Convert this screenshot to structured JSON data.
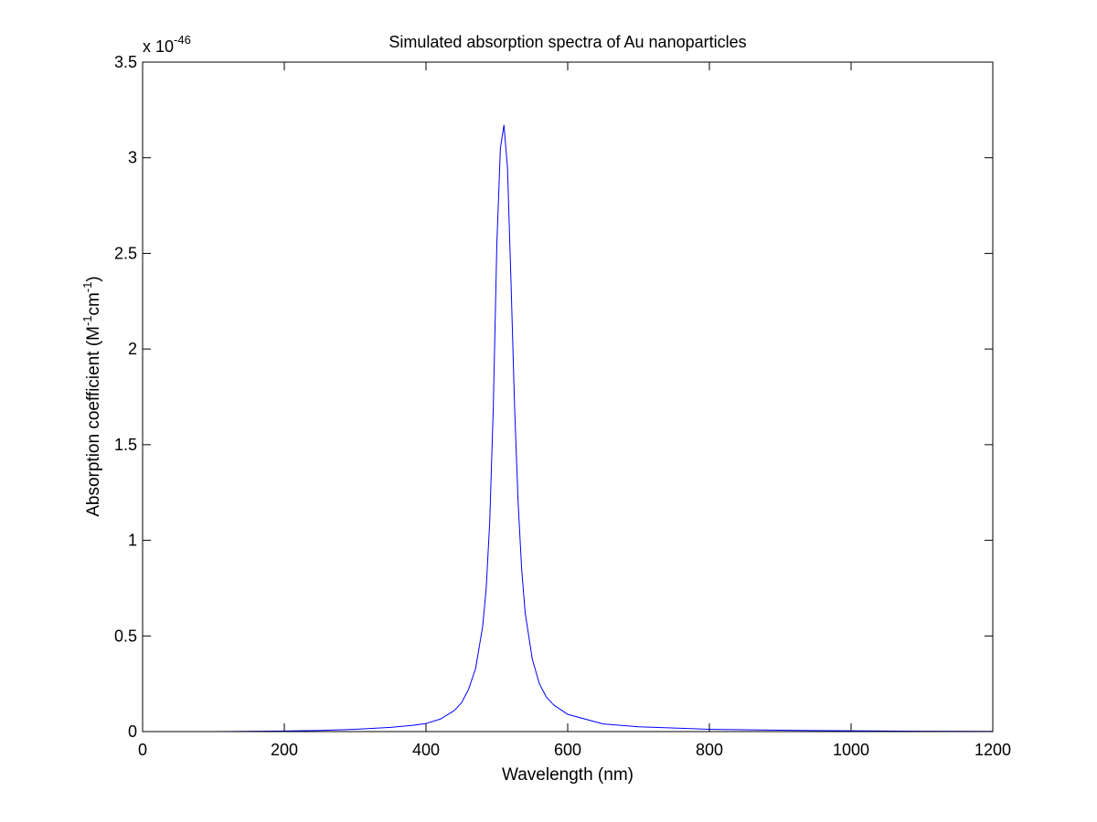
{
  "chart_data": {
    "type": "line",
    "title": "Simulated absorption spectra of Au nanoparticles",
    "xlabel": "Wavelength (nm)",
    "ylabel": {
      "base": "Absorption coefficient (M",
      "sup1": "-1",
      "mid": "cm",
      "sup2": "-1",
      "end": ")"
    },
    "y_multiplier": {
      "base": "x 10",
      "exponent": "-46"
    },
    "xlim": [
      0,
      1200
    ],
    "ylim": [
      0,
      3.5
    ],
    "x_ticks": [
      0,
      200,
      400,
      600,
      800,
      1000,
      1200
    ],
    "x_tick_labels": [
      "0",
      "200",
      "400",
      "600",
      "800",
      "1000",
      "1200"
    ],
    "y_ticks": [
      0,
      0.5,
      1,
      1.5,
      2,
      2.5,
      3,
      3.5
    ],
    "y_tick_labels": [
      "0",
      "0.5",
      "1",
      "1.5",
      "2",
      "2.5",
      "3",
      "3.5"
    ],
    "grid": false,
    "legend": "none",
    "series": [
      {
        "color": "#0000ff",
        "x": [
          0,
          100,
          200,
          250,
          300,
          350,
          380,
          400,
          420,
          440,
          450,
          460,
          470,
          480,
          485,
          490,
          495,
          500,
          505,
          510,
          515,
          520,
          525,
          530,
          535,
          540,
          550,
          560,
          570,
          580,
          600,
          650,
          700,
          800,
          900,
          1000,
          1100,
          1200
        ],
        "y": [
          0.0,
          0.0,
          0.003,
          0.006,
          0.012,
          0.022,
          0.032,
          0.042,
          0.065,
          0.11,
          0.15,
          0.22,
          0.33,
          0.55,
          0.75,
          1.1,
          1.7,
          2.55,
          3.05,
          3.17,
          2.95,
          2.35,
          1.7,
          1.2,
          0.85,
          0.62,
          0.38,
          0.25,
          0.18,
          0.14,
          0.09,
          0.04,
          0.025,
          0.012,
          0.007,
          0.004,
          0.002,
          0.001
        ]
      }
    ]
  }
}
